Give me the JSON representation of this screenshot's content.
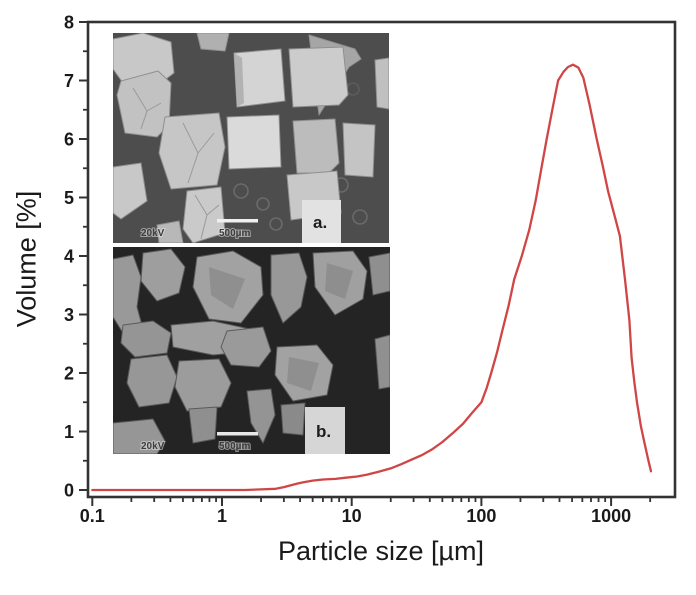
{
  "figure": {
    "x_axis_title": "Particle size [µm]",
    "y_axis_title": "Volume [%]"
  },
  "chart_data": {
    "type": "line",
    "title": "",
    "xlabel": "Particle size [µm]",
    "ylabel": "Volume [%]",
    "x_scale": "log",
    "xlim": [
      0.1,
      3000
    ],
    "ylim": [
      -0.12,
      8
    ],
    "x_major_ticks": [
      0.1,
      1,
      10,
      100,
      1000
    ],
    "x_minor_tick_max": 2000,
    "y_major_ticks": [
      0,
      1,
      2,
      3,
      4,
      5,
      6,
      7,
      8
    ],
    "y_minor_step": 0.5,
    "grid": false,
    "legend": "none",
    "series": [
      {
        "name": "volume-distribution",
        "color": "#d04545",
        "x": [
          0.1,
          0.3,
          0.7,
          1,
          1.5,
          2,
          2.6,
          3,
          3.4,
          3.8,
          4.2,
          5,
          6,
          7.5,
          9,
          11,
          13,
          16,
          20,
          24,
          29,
          35,
          42,
          50,
          60,
          72,
          85,
          100,
          110,
          119,
          132,
          146,
          162,
          179,
          205,
          234,
          262,
          290,
          319,
          352,
          390,
          430,
          465,
          508,
          560,
          610,
          680,
          775,
          860,
          950,
          1060,
          1170,
          1280,
          1385,
          1440,
          1510,
          1585,
          1700,
          1820,
          1950,
          2030
        ],
        "y": [
          0,
          0,
          0,
          0,
          0,
          0.01,
          0.02,
          0.05,
          0.08,
          0.11,
          0.13,
          0.16,
          0.18,
          0.19,
          0.21,
          0.23,
          0.26,
          0.31,
          0.37,
          0.44,
          0.52,
          0.6,
          0.7,
          0.82,
          0.97,
          1.13,
          1.32,
          1.5,
          1.75,
          2.0,
          2.35,
          2.75,
          3.15,
          3.6,
          4.0,
          4.45,
          4.95,
          5.5,
          6.0,
          6.5,
          7.0,
          7.15,
          7.23,
          7.27,
          7.22,
          7.05,
          6.6,
          6.0,
          5.55,
          5.1,
          4.7,
          4.34,
          3.6,
          2.9,
          2.26,
          1.85,
          1.5,
          1.08,
          0.78,
          0.48,
          0.32
        ]
      }
    ]
  },
  "insets": {
    "a": {
      "label": "a.",
      "voltage": "20kV",
      "scale_bar": "500µm"
    },
    "b": {
      "label": "b.",
      "voltage": "20kV",
      "scale_bar": "500µm"
    }
  },
  "colors": {
    "curve": "#d04545",
    "axis": "#333333",
    "text": "#1a1a1a"
  }
}
